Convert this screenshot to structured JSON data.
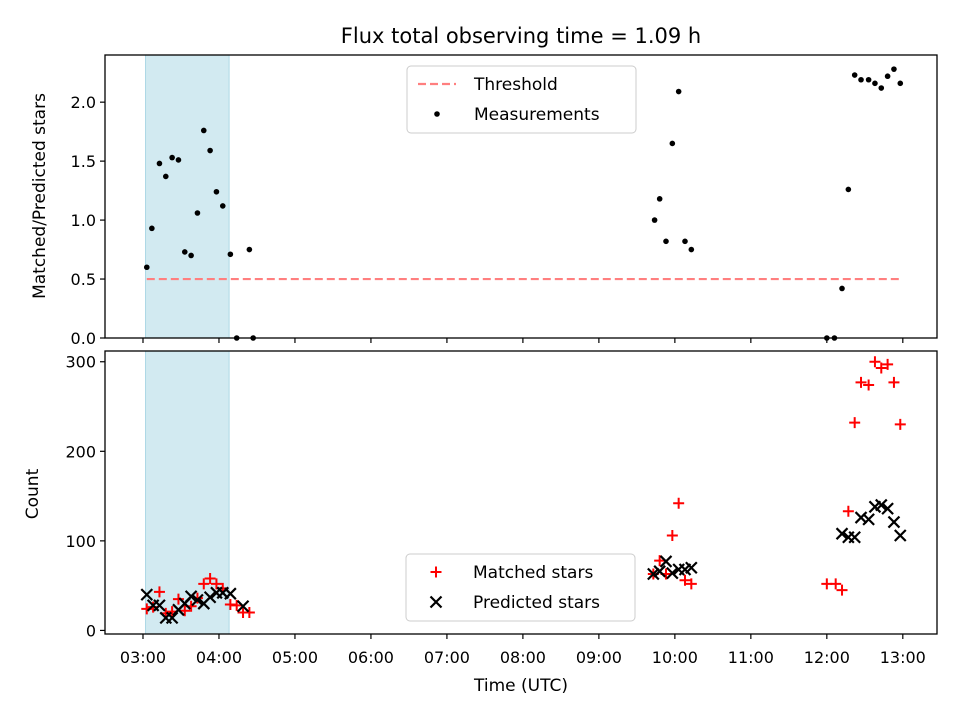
{
  "figure": {
    "title": "Flux total observing time = 1.09 h",
    "xlabel": "Time (UTC)"
  },
  "chart_data": [
    {
      "type": "scatter",
      "ylabel": "Matched/Predicted stars",
      "xlim": [
        "02:30",
        "13:27"
      ],
      "ylim": [
        0,
        2.4
      ],
      "y_ticks": [
        0.0,
        0.5,
        1.0,
        1.5,
        2.0
      ],
      "y_tick_labels": [
        "0.0",
        "0.5",
        "1.0",
        "1.5",
        "2.0"
      ],
      "x_tick_labels": [
        "03:00",
        "04:00",
        "05:00",
        "06:00",
        "07:00",
        "08:00",
        "09:00",
        "10:00",
        "11:00",
        "12:00",
        "13:00"
      ],
      "shaded_interval": {
        "start": "03:02",
        "end": "04:08",
        "color": "#add8e6"
      },
      "legend": {
        "placement": "top-center",
        "entries": [
          "Threshold",
          "Measurements"
        ]
      },
      "threshold": {
        "name": "Threshold",
        "value": 0.5,
        "x": [
          "03:03",
          "12:58"
        ],
        "color": "#ff7f7f"
      },
      "series": [
        {
          "name": "Measurements",
          "color": "#000000",
          "points": [
            {
              "x": "03:03",
              "y": 0.6
            },
            {
              "x": "03:07",
              "y": 0.93
            },
            {
              "x": "03:13",
              "y": 1.48
            },
            {
              "x": "03:18",
              "y": 1.37
            },
            {
              "x": "03:23",
              "y": 1.53
            },
            {
              "x": "03:28",
              "y": 1.51
            },
            {
              "x": "03:33",
              "y": 0.73
            },
            {
              "x": "03:38",
              "y": 0.7
            },
            {
              "x": "03:43",
              "y": 1.06
            },
            {
              "x": "03:48",
              "y": 1.76
            },
            {
              "x": "03:53",
              "y": 1.59
            },
            {
              "x": "03:58",
              "y": 1.24
            },
            {
              "x": "04:03",
              "y": 1.12
            },
            {
              "x": "04:09",
              "y": 0.71
            },
            {
              "x": "04:14",
              "y": 0.0
            },
            {
              "x": "04:24",
              "y": 0.75
            },
            {
              "x": "04:27",
              "y": 0.0
            },
            {
              "x": "09:44",
              "y": 1.0
            },
            {
              "x": "09:48",
              "y": 1.18
            },
            {
              "x": "09:53",
              "y": 0.82
            },
            {
              "x": "09:58",
              "y": 1.65
            },
            {
              "x": "10:03",
              "y": 2.09
            },
            {
              "x": "10:08",
              "y": 0.82
            },
            {
              "x": "10:13",
              "y": 0.75
            },
            {
              "x": "12:00",
              "y": 0.0
            },
            {
              "x": "12:06",
              "y": 0.0
            },
            {
              "x": "12:12",
              "y": 0.42
            },
            {
              "x": "12:17",
              "y": 1.26
            },
            {
              "x": "12:22",
              "y": 2.23
            },
            {
              "x": "12:27",
              "y": 2.19
            },
            {
              "x": "12:33",
              "y": 2.19
            },
            {
              "x": "12:38",
              "y": 2.16
            },
            {
              "x": "12:43",
              "y": 2.12
            },
            {
              "x": "12:48",
              "y": 2.22
            },
            {
              "x": "12:53",
              "y": 2.28
            },
            {
              "x": "12:58",
              "y": 2.16
            }
          ]
        }
      ]
    },
    {
      "type": "scatter",
      "ylabel": "Count",
      "xlim": [
        "02:30",
        "13:27"
      ],
      "ylim": [
        -4,
        312
      ],
      "y_ticks": [
        0,
        100,
        200,
        300
      ],
      "y_tick_labels": [
        "0",
        "100",
        "200",
        "300"
      ],
      "x_tick_labels": [
        "03:00",
        "04:00",
        "05:00",
        "06:00",
        "07:00",
        "08:00",
        "09:00",
        "10:00",
        "11:00",
        "12:00",
        "13:00"
      ],
      "shaded_interval": {
        "start": "03:02",
        "end": "04:08",
        "color": "#add8e6"
      },
      "legend": {
        "placement": "bottom-center",
        "entries": [
          "Matched stars",
          "Predicted stars"
        ]
      },
      "series": [
        {
          "name": "Matched stars",
          "marker": "plus",
          "color": "#ff0000",
          "points": [
            {
              "x": "03:03",
              "y": 24
            },
            {
              "x": "03:08",
              "y": 26
            },
            {
              "x": "03:13",
              "y": 43
            },
            {
              "x": "03:18",
              "y": 19
            },
            {
              "x": "03:23",
              "y": 21
            },
            {
              "x": "03:28",
              "y": 35
            },
            {
              "x": "03:33",
              "y": 22
            },
            {
              "x": "03:38",
              "y": 27
            },
            {
              "x": "03:43",
              "y": 36
            },
            {
              "x": "03:48",
              "y": 52
            },
            {
              "x": "03:53",
              "y": 58
            },
            {
              "x": "03:58",
              "y": 52
            },
            {
              "x": "04:03",
              "y": 47
            },
            {
              "x": "04:09",
              "y": 29
            },
            {
              "x": "04:14",
              "y": 28
            },
            {
              "x": "04:19",
              "y": 20
            },
            {
              "x": "04:24",
              "y": 20
            },
            {
              "x": "09:43",
              "y": 63
            },
            {
              "x": "09:48",
              "y": 78
            },
            {
              "x": "09:53",
              "y": 63
            },
            {
              "x": "09:58",
              "y": 106
            },
            {
              "x": "10:03",
              "y": 142
            },
            {
              "x": "10:08",
              "y": 56
            },
            {
              "x": "10:13",
              "y": 52
            },
            {
              "x": "12:00",
              "y": 52
            },
            {
              "x": "12:07",
              "y": 52
            },
            {
              "x": "12:12",
              "y": 45
            },
            {
              "x": "12:17",
              "y": 133
            },
            {
              "x": "12:22",
              "y": 232
            },
            {
              "x": "12:27",
              "y": 277
            },
            {
              "x": "12:33",
              "y": 274
            },
            {
              "x": "12:38",
              "y": 300
            },
            {
              "x": "12:43",
              "y": 293
            },
            {
              "x": "12:48",
              "y": 297
            },
            {
              "x": "12:53",
              "y": 277
            },
            {
              "x": "12:58",
              "y": 230
            }
          ]
        },
        {
          "name": "Predicted stars",
          "marker": "x",
          "color": "#000000",
          "points": [
            {
              "x": "03:03",
              "y": 40
            },
            {
              "x": "03:08",
              "y": 28
            },
            {
              "x": "03:13",
              "y": 28
            },
            {
              "x": "03:18",
              "y": 14
            },
            {
              "x": "03:23",
              "y": 14
            },
            {
              "x": "03:28",
              "y": 23
            },
            {
              "x": "03:33",
              "y": 30
            },
            {
              "x": "03:38",
              "y": 38
            },
            {
              "x": "03:43",
              "y": 34
            },
            {
              "x": "03:48",
              "y": 30
            },
            {
              "x": "03:53",
              "y": 37
            },
            {
              "x": "03:58",
              "y": 42
            },
            {
              "x": "04:03",
              "y": 42
            },
            {
              "x": "04:09",
              "y": 41
            },
            {
              "x": "04:19",
              "y": 27
            },
            {
              "x": "09:43",
              "y": 63
            },
            {
              "x": "09:48",
              "y": 66
            },
            {
              "x": "09:53",
              "y": 77
            },
            {
              "x": "09:58",
              "y": 64
            },
            {
              "x": "10:03",
              "y": 68
            },
            {
              "x": "10:08",
              "y": 68
            },
            {
              "x": "10:13",
              "y": 70
            },
            {
              "x": "12:12",
              "y": 108
            },
            {
              "x": "12:17",
              "y": 104
            },
            {
              "x": "12:22",
              "y": 104
            },
            {
              "x": "12:27",
              "y": 126
            },
            {
              "x": "12:33",
              "y": 124
            },
            {
              "x": "12:38",
              "y": 138
            },
            {
              "x": "12:43",
              "y": 140
            },
            {
              "x": "12:48",
              "y": 136
            },
            {
              "x": "12:53",
              "y": 121
            },
            {
              "x": "12:58",
              "y": 106
            }
          ]
        }
      ]
    }
  ]
}
